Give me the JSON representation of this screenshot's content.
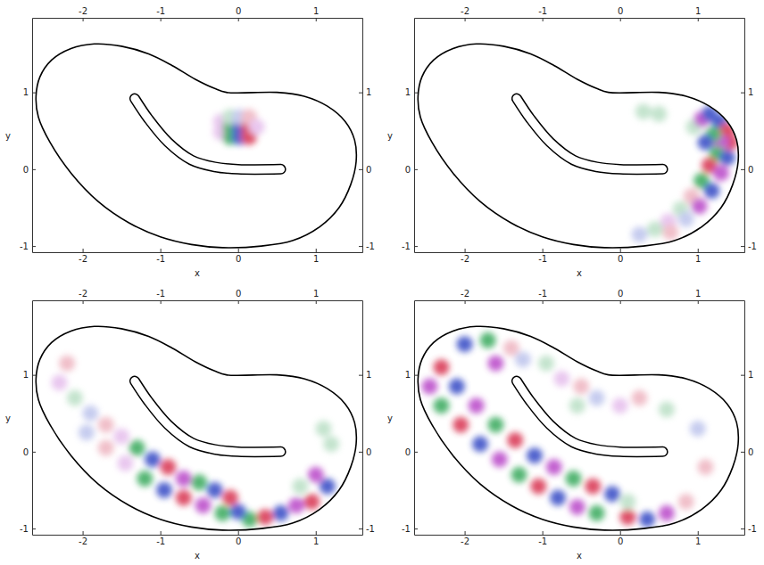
{
  "chart_data": [
    {
      "type": "scatter",
      "xlabel": "x",
      "ylabel": "y",
      "xlim": [
        -2.65,
        1.6
      ],
      "ylim": [
        -1.08,
        1.97
      ],
      "xticks": [
        -2,
        -1,
        0,
        1
      ],
      "yticks": [
        -1,
        0,
        1
      ],
      "series": [
        {
          "type": "area",
          "color": "#000000",
          "line_style": "solid",
          "x": [
            -2.6,
            -2.55,
            -2.4,
            -2.15,
            -1.85,
            -1.5,
            -1.15,
            -0.85,
            -0.55,
            -0.3,
            -0.15,
            0.5,
            0.85,
            1.15,
            1.38,
            1.5,
            1.52,
            1.45,
            1.3,
            1.05,
            0.7,
            0.3,
            -0.2,
            -0.6,
            -1.0,
            -1.4,
            -1.8,
            -2.15,
            -2.42,
            -2.57
          ],
          "values": [
            0.95,
            1.2,
            1.42,
            1.57,
            1.63,
            1.6,
            1.5,
            1.35,
            1.17,
            1.05,
            1.0,
            1.0,
            0.95,
            0.82,
            0.62,
            0.38,
            0.1,
            -0.2,
            -0.5,
            -0.75,
            -0.93,
            -1.0,
            -1.02,
            -0.98,
            -0.88,
            -0.7,
            -0.42,
            -0.05,
            0.35,
            0.68
          ]
        },
        {
          "type": "scatter",
          "marker": "blob",
          "x": [
            -0.22,
            -0.22,
            -0.1,
            -0.1,
            -0.1,
            0.02,
            0.02,
            0.02,
            0.14,
            0.14,
            0.14,
            0.24
          ],
          "values": [
            0.48,
            0.62,
            0.42,
            0.55,
            0.68,
            0.42,
            0.55,
            0.68,
            0.42,
            0.55,
            0.68,
            0.55
          ],
          "colors": [
            "#e5bdec",
            "#e5bdec",
            "#35a85a",
            "#35a85a",
            "#b9dfc5",
            "#3346c4",
            "#3346c4",
            "#bcc3ec",
            "#d8304f",
            "#d8304f",
            "#eeb4c0",
            "#e5bdec"
          ]
        },
        {
          "type": "line",
          "color": "#000000",
          "line_style": "outline",
          "x": [
            0.55,
            0.0,
            -0.3,
            -0.6,
            -0.9,
            -1.15,
            -1.33
          ],
          "values": [
            0.0,
            0.0,
            0.03,
            0.12,
            0.35,
            0.65,
            0.92
          ]
        }
      ]
    },
    {
      "type": "scatter",
      "xlabel": "x",
      "ylabel": "y",
      "xlim": [
        -2.65,
        1.6
      ],
      "ylim": [
        -1.08,
        1.97
      ],
      "xticks": [
        -2,
        -1,
        0,
        1
      ],
      "yticks": [
        -1,
        0,
        1
      ],
      "series": [
        {
          "type": "area",
          "color": "#000000",
          "line_style": "solid",
          "x": [
            -2.6,
            -2.55,
            -2.4,
            -2.15,
            -1.85,
            -1.5,
            -1.15,
            -0.85,
            -0.55,
            -0.3,
            -0.15,
            0.5,
            0.85,
            1.15,
            1.38,
            1.5,
            1.52,
            1.45,
            1.3,
            1.05,
            0.7,
            0.3,
            -0.2,
            -0.6,
            -1.0,
            -1.4,
            -1.8,
            -2.15,
            -2.42,
            -2.57
          ],
          "values": [
            0.95,
            1.2,
            1.42,
            1.57,
            1.63,
            1.6,
            1.5,
            1.35,
            1.17,
            1.05,
            1.0,
            1.0,
            0.95,
            0.82,
            0.62,
            0.38,
            0.1,
            -0.2,
            -0.5,
            -0.75,
            -0.93,
            -1.0,
            -1.02,
            -0.98,
            -0.88,
            -0.7,
            -0.42,
            -0.05,
            0.35,
            0.68
          ]
        },
        {
          "type": "scatter",
          "marker": "blob",
          "x": [
            0.95,
            1.05,
            1.15,
            1.28,
            1.38,
            1.42,
            1.3,
            1.2,
            1.1,
            1.25,
            1.38,
            1.15,
            1.3,
            1.05,
            1.18,
            0.92,
            1.02,
            0.78,
            0.85,
            0.62,
            0.65,
            0.45,
            0.25,
            0.5,
            0.3
          ],
          "values": [
            0.55,
            0.65,
            0.72,
            0.62,
            0.5,
            0.35,
            0.35,
            0.45,
            0.35,
            0.2,
            0.15,
            0.05,
            -0.05,
            -0.15,
            -0.28,
            -0.35,
            -0.48,
            -0.52,
            -0.65,
            -0.68,
            -0.82,
            -0.78,
            -0.85,
            0.72,
            0.75
          ],
          "colors": [
            "#b9dfc5",
            "#b845c8",
            "#3346c4",
            "#3346c4",
            "#d8304f",
            "#d8304f",
            "#b845c8",
            "#35a85a",
            "#3346c4",
            "#35a85a",
            "#3346c4",
            "#d8304f",
            "#b845c8",
            "#35a85a",
            "#3346c4",
            "#eeb4c0",
            "#b845c8",
            "#b9dfc5",
            "#bcc3ec",
            "#e5bdec",
            "#eeb4c0",
            "#b9dfc5",
            "#bcc3ec",
            "#b9dfc5",
            "#b9dfc5"
          ]
        },
        {
          "type": "line",
          "color": "#000000",
          "line_style": "outline",
          "x": [
            0.55,
            0.0,
            -0.3,
            -0.6,
            -0.9,
            -1.15,
            -1.33
          ],
          "values": [
            0.0,
            0.0,
            0.03,
            0.12,
            0.35,
            0.65,
            0.92
          ]
        }
      ]
    },
    {
      "type": "scatter",
      "xlabel": "x",
      "ylabel": "y",
      "xlim": [
        -2.65,
        1.6
      ],
      "ylim": [
        -1.08,
        1.97
      ],
      "xticks": [
        -2,
        -1,
        0,
        1
      ],
      "yticks": [
        -1,
        0,
        1
      ],
      "series": [
        {
          "type": "area",
          "color": "#000000",
          "line_style": "solid",
          "x": [
            -2.6,
            -2.55,
            -2.4,
            -2.15,
            -1.85,
            -1.5,
            -1.15,
            -0.85,
            -0.55,
            -0.3,
            -0.15,
            0.5,
            0.85,
            1.15,
            1.38,
            1.5,
            1.52,
            1.45,
            1.3,
            1.05,
            0.7,
            0.3,
            -0.2,
            -0.6,
            -1.0,
            -1.4,
            -1.8,
            -2.15,
            -2.42,
            -2.57
          ],
          "values": [
            0.95,
            1.2,
            1.42,
            1.57,
            1.63,
            1.6,
            1.5,
            1.35,
            1.17,
            1.05,
            1.0,
            1.0,
            0.95,
            0.82,
            0.62,
            0.38,
            0.1,
            -0.2,
            -0.5,
            -0.75,
            -0.93,
            -1.0,
            -1.02,
            -0.98,
            -0.88,
            -0.7,
            -0.42,
            -0.05,
            0.35,
            0.68
          ]
        },
        {
          "type": "scatter",
          "marker": "blob",
          "x": [
            0.15,
            0.35,
            0.55,
            0.75,
            -0.1,
            -0.3,
            -0.5,
            -0.7,
            -0.9,
            -1.1,
            -1.3,
            -1.5,
            -1.7,
            -1.9,
            -2.1,
            -2.3,
            -2.2,
            -0.2,
            -0.45,
            -0.7,
            -0.95,
            -1.2,
            -1.45,
            -1.7,
            -1.95,
            0.8,
            1.0,
            1.15,
            0.95,
            1.2,
            1.1,
            0.0
          ],
          "values": [
            -0.88,
            -0.85,
            -0.8,
            -0.7,
            -0.6,
            -0.5,
            -0.4,
            -0.35,
            -0.2,
            -0.1,
            0.05,
            0.2,
            0.35,
            0.5,
            0.7,
            0.9,
            1.15,
            -0.8,
            -0.7,
            -0.6,
            -0.5,
            -0.35,
            -0.15,
            0.05,
            0.25,
            -0.45,
            -0.3,
            -0.45,
            -0.65,
            0.1,
            0.3,
            -0.78
          ],
          "colors": [
            "#35a85a",
            "#d8304f",
            "#3346c4",
            "#b845c8",
            "#d8304f",
            "#3346c4",
            "#35a85a",
            "#b845c8",
            "#d8304f",
            "#3346c4",
            "#35a85a",
            "#e5bdec",
            "#eeb4c0",
            "#bcc3ec",
            "#b9dfc5",
            "#e5bdec",
            "#eeb4c0",
            "#35a85a",
            "#b845c8",
            "#d8304f",
            "#3346c4",
            "#35a85a",
            "#e5bdec",
            "#eeb4c0",
            "#bcc3ec",
            "#b9dfc5",
            "#b845c8",
            "#3346c4",
            "#d8304f",
            "#b9dfc5",
            "#b9dfc5",
            "#3346c4"
          ]
        },
        {
          "type": "line",
          "color": "#000000",
          "line_style": "outline",
          "x": [
            0.55,
            0.0,
            -0.3,
            -0.6,
            -0.9,
            -1.15,
            -1.33
          ],
          "values": [
            0.0,
            0.0,
            0.03,
            0.12,
            0.35,
            0.65,
            0.92
          ]
        }
      ]
    },
    {
      "type": "scatter",
      "xlabel": "x",
      "ylabel": "y",
      "xlim": [
        -2.65,
        1.6
      ],
      "ylim": [
        -1.08,
        1.97
      ],
      "xticks": [
        -2,
        -1,
        0,
        1
      ],
      "yticks": [
        -1,
        0,
        1
      ],
      "series": [
        {
          "type": "area",
          "color": "#000000",
          "line_style": "solid",
          "x": [
            -2.6,
            -2.55,
            -2.4,
            -2.15,
            -1.85,
            -1.5,
            -1.15,
            -0.85,
            -0.55,
            -0.3,
            -0.15,
            0.5,
            0.85,
            1.15,
            1.38,
            1.5,
            1.52,
            1.45,
            1.3,
            1.05,
            0.7,
            0.3,
            -0.2,
            -0.6,
            -1.0,
            -1.4,
            -1.8,
            -2.15,
            -2.42,
            -2.57
          ],
          "values": [
            0.95,
            1.2,
            1.42,
            1.57,
            1.63,
            1.6,
            1.5,
            1.35,
            1.17,
            1.05,
            1.0,
            1.0,
            0.95,
            0.82,
            0.62,
            0.38,
            0.1,
            -0.2,
            -0.5,
            -0.75,
            -0.93,
            -1.0,
            -1.02,
            -0.98,
            -0.88,
            -0.7,
            -0.42,
            -0.05,
            0.35,
            0.68
          ]
        },
        {
          "type": "scatter",
          "marker": "blob",
          "x": [
            -0.1,
            -0.35,
            -0.6,
            -0.85,
            -1.1,
            -1.35,
            -1.6,
            -1.85,
            -2.1,
            -2.3,
            -0.3,
            -0.55,
            -0.8,
            -1.05,
            -1.3,
            -1.55,
            -1.8,
            -2.05,
            -2.3,
            -2.45,
            0.1,
            0.35,
            0.6,
            0.85,
            0.1,
            -2.0,
            -1.7,
            -1.4,
            -1.6,
            -1.25,
            -0.95,
            -0.75,
            -0.5,
            -0.3,
            -0.55,
            0.0,
            0.25,
            0.6,
            1.0,
            1.1
          ],
          "values": [
            -0.55,
            -0.45,
            -0.35,
            -0.2,
            -0.05,
            0.15,
            0.35,
            0.6,
            0.85,
            1.1,
            -0.8,
            -0.72,
            -0.6,
            -0.45,
            -0.3,
            -0.1,
            0.1,
            0.35,
            0.6,
            0.85,
            -0.85,
            -0.88,
            -0.8,
            -0.65,
            -0.65,
            1.4,
            1.45,
            1.35,
            1.15,
            1.2,
            1.15,
            0.95,
            0.85,
            0.7,
            0.6,
            0.6,
            0.7,
            0.55,
            0.3,
            -0.2
          ],
          "colors": [
            "#3346c4",
            "#d8304f",
            "#35a85a",
            "#b845c8",
            "#3346c4",
            "#d8304f",
            "#35a85a",
            "#b845c8",
            "#3346c4",
            "#d8304f",
            "#35a85a",
            "#b845c8",
            "#3346c4",
            "#d8304f",
            "#35a85a",
            "#b845c8",
            "#3346c4",
            "#d8304f",
            "#35a85a",
            "#b845c8",
            "#d8304f",
            "#3346c4",
            "#b845c8",
            "#eeb4c0",
            "#b9dfc5",
            "#3346c4",
            "#35a85a",
            "#eeb4c0",
            "#b845c8",
            "#bcc3ec",
            "#b9dfc5",
            "#e5bdec",
            "#eeb4c0",
            "#bcc3ec",
            "#b9dfc5",
            "#e5bdec",
            "#eeb4c0",
            "#b9dfc5",
            "#bcc3ec",
            "#eeb4c0"
          ]
        },
        {
          "type": "line",
          "color": "#000000",
          "line_style": "outline",
          "x": [
            0.55,
            0.0,
            -0.3,
            -0.6,
            -0.9,
            -1.15,
            -1.33
          ],
          "values": [
            0.0,
            0.0,
            0.03,
            0.12,
            0.35,
            0.65,
            0.92
          ]
        }
      ]
    }
  ]
}
